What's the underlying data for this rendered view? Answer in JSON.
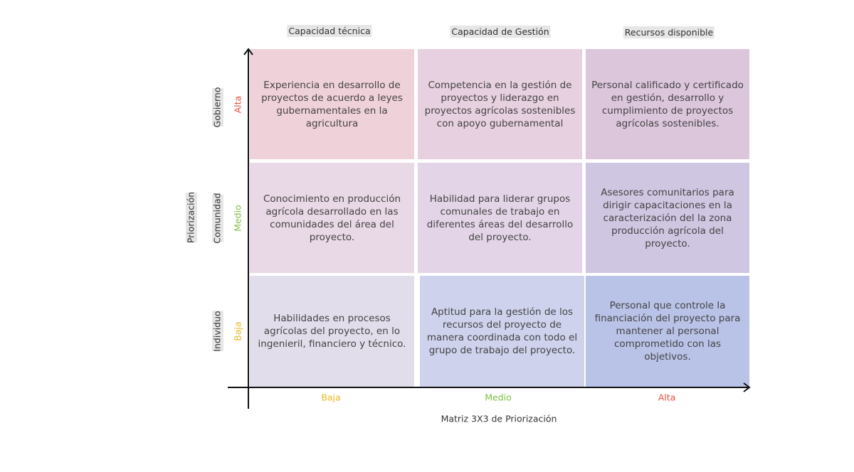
{
  "column_headers": [
    "Capacidad técnica",
    "Capacidad de Gestión",
    "Recursos disponible"
  ],
  "y_axis_title": "Priorización",
  "rows": [
    {
      "group": "Gobierno",
      "level": "Alta",
      "cells": [
        "Experiencia en desarrollo de proyectos de acuerdo a leyes gubernamentales en la agricultura",
        "Competencia en la gestión de proyectos y liderazgo en proyectos agrícolas sostenibles con apoyo gubernamental",
        "Personal calificado y certificado en gestión, desarrollo y cumplimiento de proyectos agrícolas sostenibles."
      ]
    },
    {
      "group": "Comunidad",
      "level": "Medio",
      "cells": [
        "Conocimiento en producción agrícola desarrollado en las comunidades del área del proyecto.",
        "Habilidad para liderar grupos comunales de trabajo en diferentes áreas del desarrollo del proyecto.",
        "Asesores comunitarios para dirigir capacitaciones en la caracterización del la zona producción agrícola del proyecto."
      ]
    },
    {
      "group": "Individuo",
      "level": "Baja",
      "cells": [
        "Habilidades en procesos agrícolas del proyecto, en lo ingenieril, financiero y técnico.",
        "Aptitud para la gestión de los recursos del proyecto de manera coordinada con todo el grupo de trabajo del proyecto.",
        "Personal que controle la financiación del proyecto para mantener al personal comprometido con las objetivos."
      ]
    }
  ],
  "x_levels": [
    "Baja",
    "Medio",
    "Alta"
  ],
  "caption": "Matriz 3X3 de Priorización"
}
